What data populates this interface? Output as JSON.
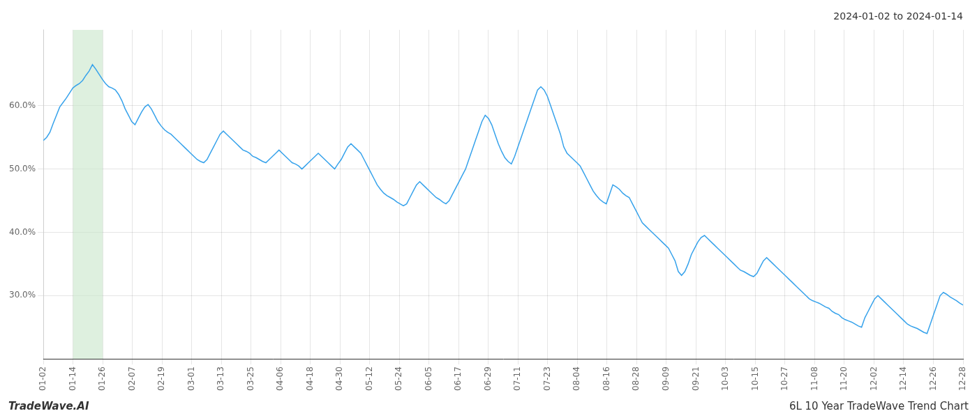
{
  "chart_data": {
    "type": "line",
    "title": "2024-01-02 to 2024-01-14",
    "annotations": [
      "TradeWave.AI",
      "6L 10 Year TradeWave Trend Chart"
    ],
    "grid": true,
    "xlim": [
      0,
      31
    ],
    "xticks": [
      {
        "value": 0,
        "label": "01-02"
      },
      {
        "value": 1,
        "label": "01-14"
      },
      {
        "value": 2,
        "label": "01-26"
      },
      {
        "value": 3,
        "label": "02-07"
      },
      {
        "value": 4,
        "label": "02-19"
      },
      {
        "value": 5,
        "label": "03-01"
      },
      {
        "value": 6,
        "label": "03-13"
      },
      {
        "value": 7,
        "label": "03-25"
      },
      {
        "value": 8,
        "label": "04-06"
      },
      {
        "value": 9,
        "label": "04-18"
      },
      {
        "value": 10,
        "label": "04-30"
      },
      {
        "value": 11,
        "label": "05-12"
      },
      {
        "value": 12,
        "label": "05-24"
      },
      {
        "value": 13,
        "label": "06-05"
      },
      {
        "value": 14,
        "label": "06-17"
      },
      {
        "value": 15,
        "label": "06-29"
      },
      {
        "value": 16,
        "label": "07-11"
      },
      {
        "value": 17,
        "label": "07-23"
      },
      {
        "value": 18,
        "label": "08-04"
      },
      {
        "value": 19,
        "label": "08-16"
      },
      {
        "value": 20,
        "label": "08-28"
      },
      {
        "value": 21,
        "label": "09-09"
      },
      {
        "value": 22,
        "label": "09-21"
      },
      {
        "value": 23,
        "label": "10-03"
      },
      {
        "value": 24,
        "label": "10-15"
      },
      {
        "value": 25,
        "label": "10-27"
      },
      {
        "value": 26,
        "label": "11-08"
      },
      {
        "value": 27,
        "label": "11-20"
      },
      {
        "value": 28,
        "label": "12-02"
      },
      {
        "value": 29,
        "label": "12-14"
      },
      {
        "value": 30,
        "label": "12-26"
      },
      {
        "value": 31,
        "label": "12-28"
      }
    ],
    "ylim": [
      20,
      72
    ],
    "yticks": [
      {
        "value": 30,
        "label": "30.0%"
      },
      {
        "value": 40,
        "label": "40.0%"
      },
      {
        "value": 50,
        "label": "50.0%"
      },
      {
        "value": 60,
        "label": "60.0%"
      }
    ],
    "highlight": {
      "range": [
        1,
        2
      ],
      "color": "#c8e6c9"
    },
    "values": [
      54.5,
      55.0,
      55.8,
      57.2,
      58.5,
      59.8,
      60.5,
      61.2,
      62.0,
      62.8,
      63.2,
      63.5,
      64.0,
      64.8,
      65.5,
      66.5,
      65.8,
      65.0,
      64.2,
      63.5,
      63.0,
      62.8,
      62.5,
      61.8,
      60.8,
      59.5,
      58.5,
      57.5,
      57.0,
      58.0,
      59.0,
      59.8,
      60.2,
      59.5,
      58.5,
      57.5,
      56.8,
      56.2,
      55.8,
      55.5,
      55.0,
      54.5,
      54.0,
      53.5,
      53.0,
      52.5,
      52.0,
      51.5,
      51.2,
      51.0,
      51.5,
      52.5,
      53.5,
      54.5,
      55.5,
      56.0,
      55.5,
      55.0,
      54.5,
      54.0,
      53.5,
      53.0,
      52.8,
      52.5,
      52.0,
      51.8,
      51.5,
      51.2,
      51.0,
      51.5,
      52.0,
      52.5,
      53.0,
      52.5,
      52.0,
      51.5,
      51.0,
      50.8,
      50.5,
      50.0,
      50.5,
      51.0,
      51.5,
      52.0,
      52.5,
      52.0,
      51.5,
      51.0,
      50.5,
      50.0,
      50.8,
      51.5,
      52.5,
      53.5,
      54.0,
      53.5,
      53.0,
      52.5,
      51.5,
      50.5,
      49.5,
      48.5,
      47.5,
      46.8,
      46.2,
      45.8,
      45.5,
      45.2,
      44.8,
      44.5,
      44.2,
      44.5,
      45.5,
      46.5,
      47.5,
      48.0,
      47.5,
      47.0,
      46.5,
      46.0,
      45.5,
      45.2,
      44.8,
      44.5,
      45.0,
      46.0,
      47.0,
      48.0,
      49.0,
      50.0,
      51.5,
      53.0,
      54.5,
      56.0,
      57.5,
      58.5,
      58.0,
      57.0,
      55.5,
      54.0,
      52.8,
      51.8,
      51.2,
      50.8,
      52.0,
      53.5,
      55.0,
      56.5,
      58.0,
      59.5,
      61.0,
      62.5,
      63.0,
      62.5,
      61.5,
      60.0,
      58.5,
      57.0,
      55.5,
      53.5,
      52.5,
      52.0,
      51.5,
      51.0,
      50.5,
      49.5,
      48.5,
      47.5,
      46.5,
      45.8,
      45.2,
      44.8,
      44.5,
      46.0,
      47.5,
      47.2,
      46.8,
      46.2,
      45.8,
      45.5,
      44.5,
      43.5,
      42.5,
      41.5,
      41.0,
      40.5,
      40.0,
      39.5,
      39.0,
      38.5,
      38.0,
      37.5,
      36.5,
      35.5,
      33.8,
      33.2,
      33.8,
      35.0,
      36.5,
      37.5,
      38.5,
      39.2,
      39.5,
      39.0,
      38.5,
      38.0,
      37.5,
      37.0,
      36.5,
      36.0,
      35.5,
      35.0,
      34.5,
      34.0,
      33.8,
      33.5,
      33.2,
      33.0,
      33.5,
      34.5,
      35.5,
      36.0,
      35.5,
      35.0,
      34.5,
      34.0,
      33.5,
      33.0,
      32.5,
      32.0,
      31.5,
      31.0,
      30.5,
      30.0,
      29.5,
      29.2,
      29.0,
      28.8,
      28.5,
      28.2,
      28.0,
      27.5,
      27.2,
      27.0,
      26.5,
      26.2,
      26.0,
      25.8,
      25.5,
      25.2,
      25.0,
      26.5,
      27.5,
      28.5,
      29.5,
      30.0,
      29.5,
      29.0,
      28.5,
      28.0,
      27.5,
      27.0,
      26.5,
      26.0,
      25.5,
      25.2,
      25.0,
      24.8,
      24.5,
      24.2,
      24.0,
      25.5,
      27.0,
      28.5,
      30.0,
      30.5,
      30.2,
      29.8,
      29.5,
      29.2,
      28.8,
      28.5
    ]
  }
}
